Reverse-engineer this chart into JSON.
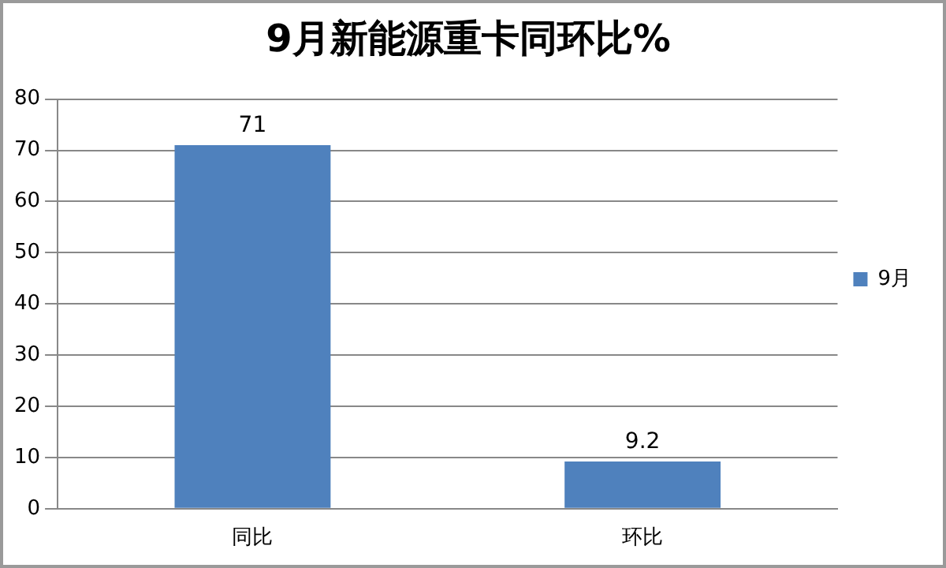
{
  "chart_data": {
    "type": "bar",
    "title": "9月新能源重卡同环比%",
    "categories": [
      "同比",
      "环比"
    ],
    "series": [
      {
        "name": "9月",
        "color": "#4f81bd",
        "values": [
          71,
          9.2
        ]
      }
    ],
    "ylim": [
      0,
      80
    ],
    "yticks": [
      0,
      10,
      20,
      30,
      40,
      50,
      60,
      70,
      80
    ],
    "grid": "y",
    "legend": "right",
    "data_labels": true
  }
}
